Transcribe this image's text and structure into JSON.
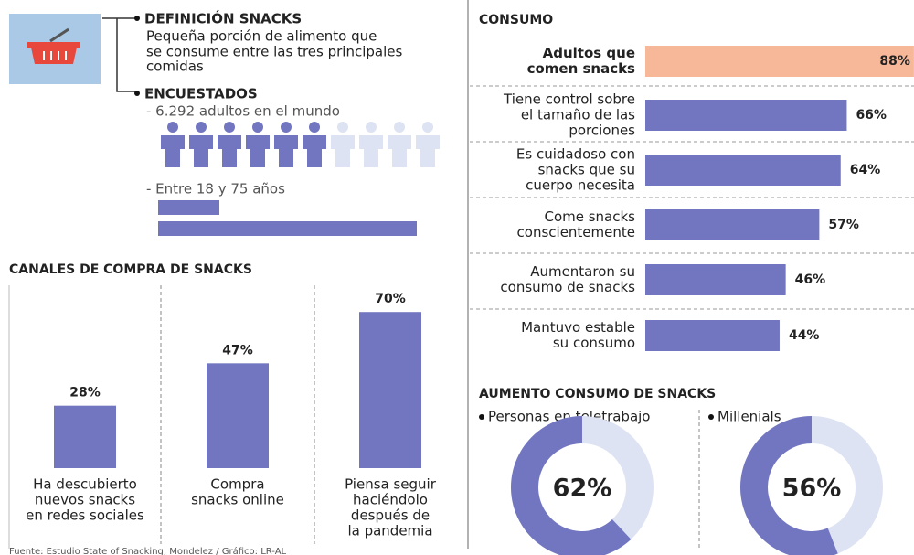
{
  "definition": {
    "title": "DEFINICIÓN SNACKS",
    "lines": [
      "Pequeña porción de alimento que",
      "se consume entre las tres principales",
      "comidas"
    ]
  },
  "respondents": {
    "title": "ENCUESTADOS",
    "items": [
      "- 6.292 adultos en el mundo",
      "- Entre 18 y 75 años"
    ]
  },
  "source": "Fuente: Estudio State of Snacking, Mondelez / Gráfico: LR-AL",
  "chart_data": [
    {
      "type": "bar",
      "title": "CANALES DE COMPRA DE SNACKS",
      "categories": [
        [
          "Ha descubierto",
          "nuevos snacks",
          "en redes sociales"
        ],
        [
          "Compra",
          "snacks online"
        ],
        [
          "Piensa seguir",
          "haciéndolo",
          "después de",
          "la pandemia"
        ]
      ],
      "values": [
        28,
        47,
        70
      ],
      "value_labels": [
        "28%",
        "47%",
        "70%"
      ],
      "color": "#7276c0"
    },
    {
      "type": "hbar",
      "title": "CONSUMO",
      "categories": [
        [
          "Adultos que",
          "comen snacks"
        ],
        [
          "Tiene control sobre",
          "el tamaño de las",
          "porciones"
        ],
        [
          "Es cuidadoso con",
          "snacks que su",
          "cuerpo necesita"
        ],
        [
          "Come snacks",
          "conscientemente"
        ],
        [
          "Aumentaron su",
          "consumo de snacks"
        ],
        [
          "Mantuvo estable",
          "su consumo"
        ]
      ],
      "values": [
        88,
        66,
        64,
        57,
        46,
        44
      ],
      "value_labels": [
        "88%",
        "66%",
        "64%",
        "57%",
        "46%",
        "44%"
      ],
      "colors": [
        "#f7b89a",
        "#7276c0",
        "#7276c0",
        "#7276c0",
        "#7276c0",
        "#7276c0"
      ]
    },
    {
      "type": "donut",
      "title": "AUMENTO CONSUMO DE SNACKS",
      "series": [
        {
          "name": "Personas en teletrabajo",
          "values": [
            62
          ],
          "value_labels": [
            "62%"
          ]
        },
        {
          "name": "Millenials",
          "values": [
            56
          ],
          "value_labels": [
            "56%"
          ]
        }
      ],
      "color": "#7276c0",
      "rest_color": "#dde3f3"
    }
  ]
}
